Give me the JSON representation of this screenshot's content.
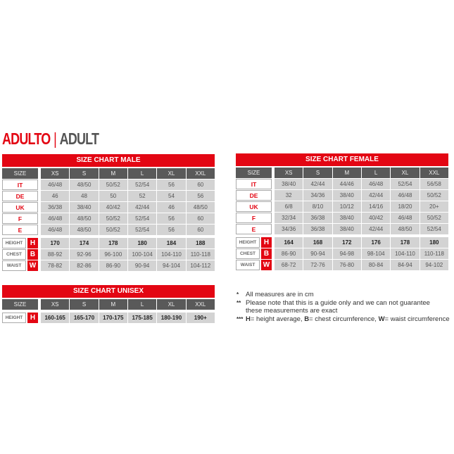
{
  "heading": {
    "red": "ADULTO",
    "separator": "|",
    "grey": "ADULT"
  },
  "sizes": [
    "XS",
    "S",
    "M",
    "L",
    "XL",
    "XXL"
  ],
  "size_label": "SIZE",
  "male": {
    "title": "SIZE CHART MALE",
    "country_rows": [
      {
        "label": "IT",
        "values": [
          "46/48",
          "48/50",
          "50/52",
          "52/54",
          "56",
          "60"
        ]
      },
      {
        "label": "DE",
        "values": [
          "46",
          "48",
          "50",
          "52",
          "54",
          "56"
        ]
      },
      {
        "label": "UK",
        "values": [
          "36/38",
          "38/40",
          "40/42",
          "42/44",
          "46",
          "48/50"
        ]
      },
      {
        "label": "F",
        "values": [
          "46/48",
          "48/50",
          "50/52",
          "52/54",
          "56",
          "60"
        ]
      },
      {
        "label": "E",
        "values": [
          "46/48",
          "48/50",
          "50/52",
          "52/54",
          "56",
          "60"
        ]
      }
    ],
    "measure_rows": [
      {
        "label": "HEIGHT",
        "letter": "H",
        "values": [
          "170",
          "174",
          "178",
          "180",
          "184",
          "188"
        ]
      },
      {
        "label": "CHEST",
        "letter": "B",
        "values": [
          "88-92",
          "92-96",
          "96-100",
          "100-104",
          "104-110",
          "110-118"
        ]
      },
      {
        "label": "WAIST",
        "letter": "W",
        "values": [
          "78-82",
          "82-86",
          "86-90",
          "90-94",
          "94-104",
          "104-112"
        ]
      }
    ]
  },
  "female": {
    "title": "SIZE CHART FEMALE",
    "country_rows": [
      {
        "label": "IT",
        "values": [
          "38/40",
          "42/44",
          "44/46",
          "46/48",
          "52/54",
          "56/58"
        ]
      },
      {
        "label": "DE",
        "values": [
          "32",
          "34/36",
          "38/40",
          "42/44",
          "46/48",
          "50/52"
        ]
      },
      {
        "label": "UK",
        "values": [
          "6/8",
          "8/10",
          "10/12",
          "14/16",
          "18/20",
          "20+"
        ]
      },
      {
        "label": "F",
        "values": [
          "32/34",
          "36/38",
          "38/40",
          "40/42",
          "46/48",
          "50/52"
        ]
      },
      {
        "label": "E",
        "values": [
          "34/36",
          "36/38",
          "38/40",
          "42/44",
          "48/50",
          "52/54"
        ]
      }
    ],
    "measure_rows": [
      {
        "label": "HEIGHT",
        "letter": "H",
        "values": [
          "164",
          "168",
          "172",
          "176",
          "178",
          "180"
        ]
      },
      {
        "label": "CHEST",
        "letter": "B",
        "values": [
          "86-90",
          "90-94",
          "94-98",
          "98-104",
          "104-110",
          "110-118"
        ]
      },
      {
        "label": "WAIST",
        "letter": "W",
        "values": [
          "68-72",
          "72-76",
          "76-80",
          "80-84",
          "84-94",
          "94-102"
        ]
      }
    ]
  },
  "unisex": {
    "title": "SIZE CHART UNISEX",
    "country_rows": [],
    "measure_rows": [
      {
        "label": "HEIGHT",
        "letter": "H",
        "values": [
          "160-165",
          "165-170",
          "170-175",
          "175-185",
          "180-190",
          "190+"
        ]
      }
    ]
  },
  "notes": [
    {
      "marker": "*",
      "text": "All measures are in cm"
    },
    {
      "marker": "**",
      "text": "Please note that this is a guide only and we can not guarantee these measurements are exact"
    },
    {
      "marker": "***",
      "parts": [
        {
          "b": "H",
          "t": "= height average, "
        },
        {
          "b": "B",
          "t": "= chest circumference, "
        },
        {
          "b": "W",
          "t": "= waist circumference"
        }
      ]
    }
  ],
  "colors": {
    "accent": "#e30613",
    "header": "#595959",
    "cell": "#d3d3d3"
  }
}
